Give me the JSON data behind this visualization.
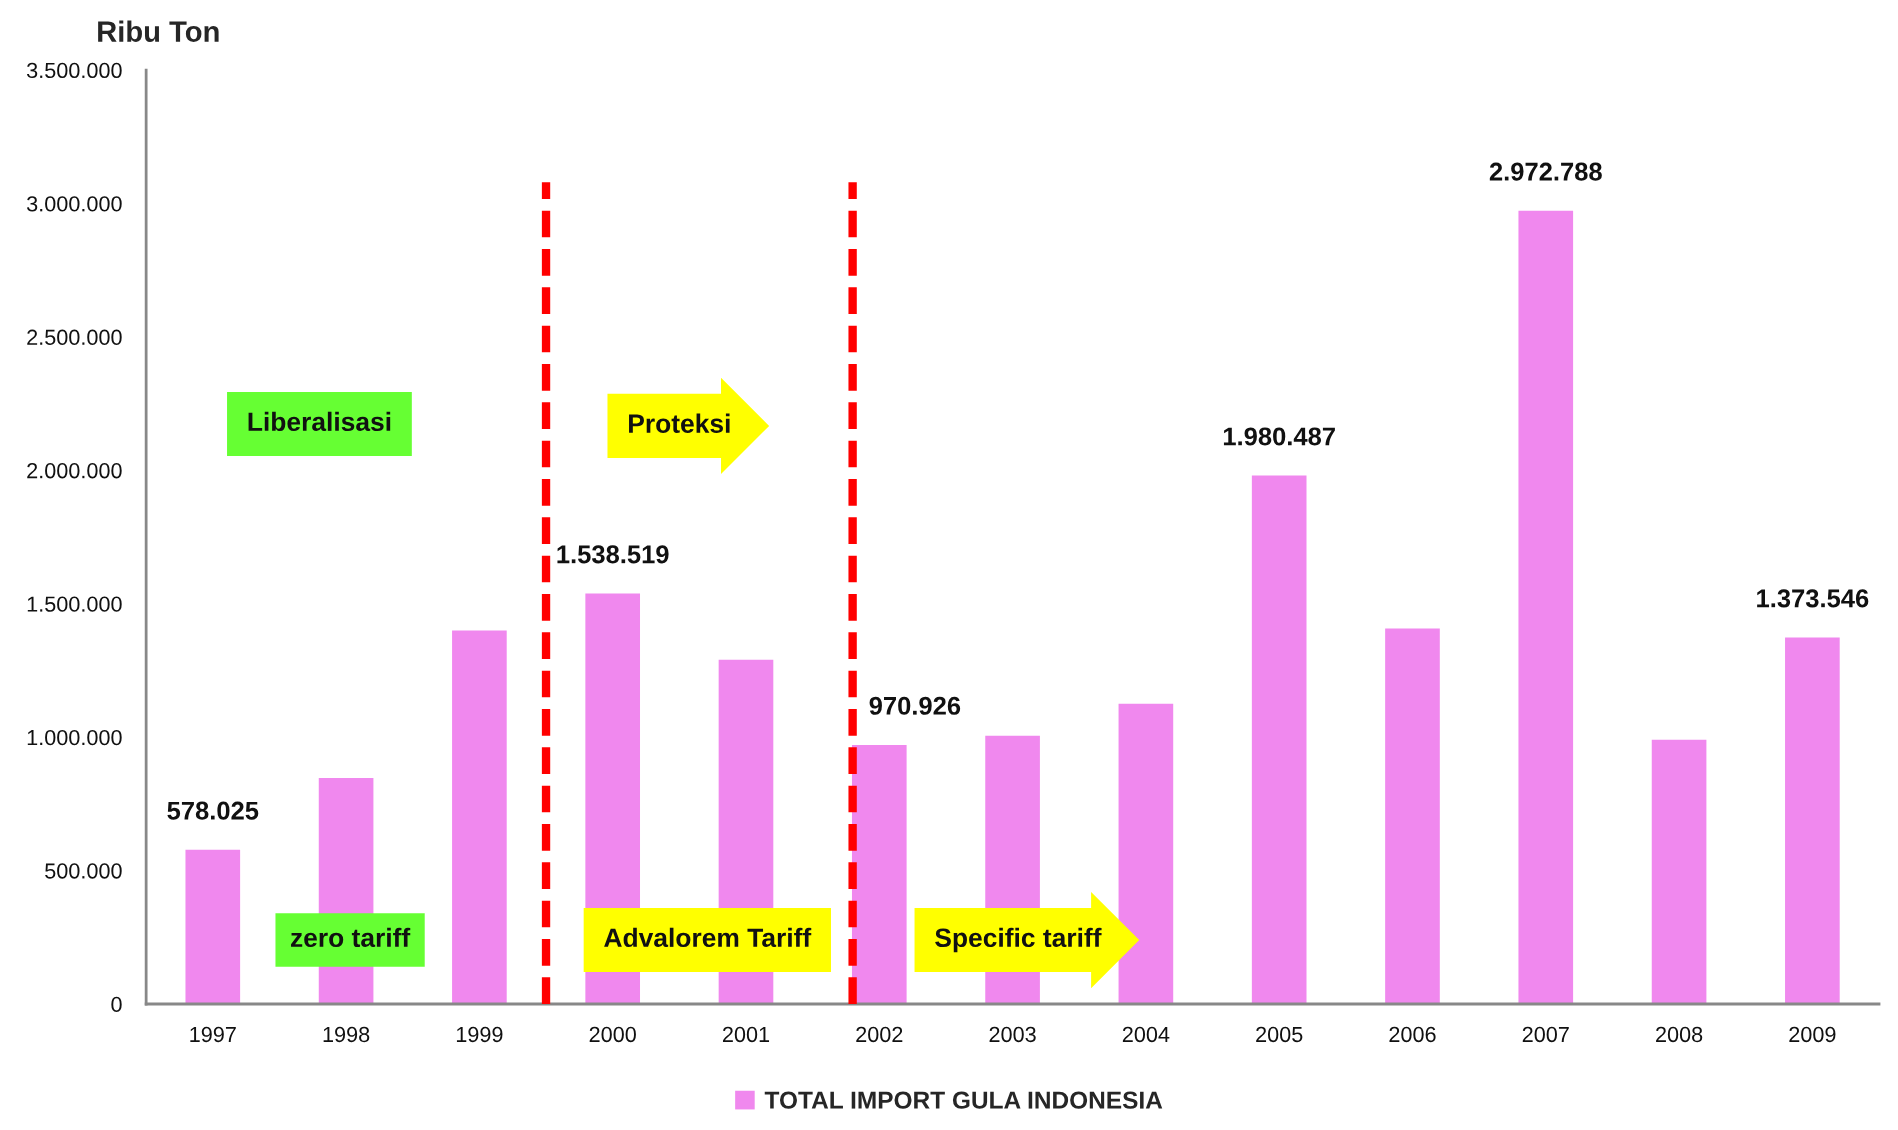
{
  "chart_data": {
    "type": "bar",
    "ylabel": "Ribu Ton",
    "x": [
      1997,
      1998,
      1999,
      2000,
      2001,
      2002,
      2003,
      2004,
      2005,
      2006,
      2007,
      2008,
      2009
    ],
    "xlim": [
      1996.5,
      2009.5
    ],
    "xticks": [
      1997,
      1998,
      1999,
      2000,
      2001,
      2002,
      2003,
      2004,
      2005,
      2006,
      2007,
      2008,
      2009
    ],
    "ylim": [
      0,
      3500000
    ],
    "yticks": [
      0,
      {
        "value": 500000,
        "label": "500.000"
      },
      {
        "value": 1000000,
        "label": "1.000.000"
      },
      {
        "value": 1500000,
        "label": "1.500.000"
      },
      {
        "value": 2000000,
        "label": "2.000.000"
      },
      {
        "value": 2500000,
        "label": "2.500.000"
      },
      {
        "value": 3000000,
        "label": "3.000.000"
      },
      {
        "value": 3500000,
        "label": "3.500.000"
      }
    ],
    "series": [
      {
        "name": "TOTAL IMPORT GULA INDONESIA",
        "color": "#f088ee",
        "values": [
          578025,
          847000,
          1400000,
          1538519,
          1290000,
          970926,
          1005000,
          1125000,
          1980487,
          1407000,
          2972788,
          990000,
          1373546
        ],
        "value_labels": [
          "578.025",
          null,
          null,
          "1.538.519",
          null,
          "970.926",
          null,
          null,
          "1.980.487",
          null,
          "2.972.788",
          null,
          "1.373.546"
        ]
      }
    ],
    "ref_lines": [
      {
        "axis": "x",
        "value": 1999.5,
        "color": "#ff0000",
        "line_style": "dashed"
      },
      {
        "axis": "x",
        "value": 2001.8,
        "color": "#ff0000",
        "line_style": "dashed"
      }
    ],
    "annotations": [
      "Liberalisasi",
      "Proteksi",
      "zero tariff",
      "Advalorem Tariff",
      "Specific tariff"
    ],
    "legend": "bottom"
  }
}
